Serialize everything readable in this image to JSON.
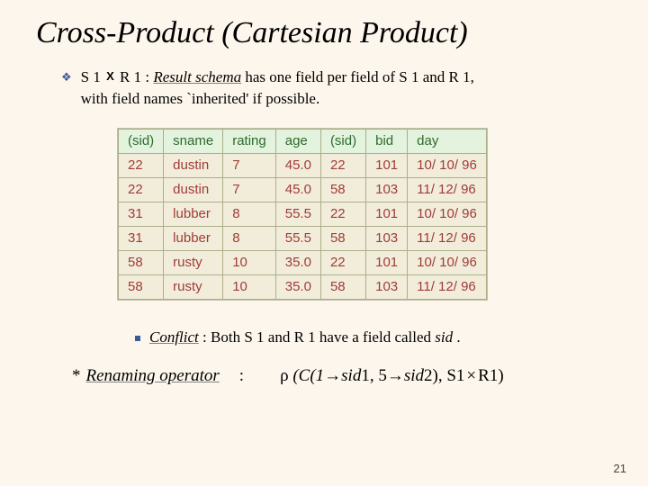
{
  "title": "Cross-Product (Cartesian Product)",
  "bullet": {
    "lhs": "S 1",
    "op": "X",
    "rhs": "R 1",
    "sep": " :  ",
    "schema": "Result schema",
    "rest1": " has one field per field of S 1 and R 1,",
    "rest2": "with field names `inherited' if possible."
  },
  "table": {
    "headers": [
      "(sid)",
      "sname",
      "rating",
      "age",
      "(sid)",
      "bid",
      "day"
    ],
    "rows": [
      [
        "22",
        "dustin",
        "7",
        "45.0",
        "22",
        "101",
        "10/ 10/ 96"
      ],
      [
        "22",
        "dustin",
        "7",
        "45.0",
        "58",
        "103",
        "11/ 12/ 96"
      ],
      [
        "31",
        "lubber",
        "8",
        "55.5",
        "22",
        "101",
        "10/ 10/ 96"
      ],
      [
        "31",
        "lubber",
        "8",
        "55.5",
        "58",
        "103",
        "11/ 12/ 96"
      ],
      [
        "58",
        "rusty",
        "10",
        "35.0",
        "22",
        "101",
        "10/ 10/ 96"
      ],
      [
        "58",
        "rusty",
        "10",
        "35.0",
        "58",
        "103",
        "11/ 12/ 96"
      ]
    ],
    "header_bg": "#e3f3de",
    "header_color": "#2d6b2d",
    "cell_color": "#a03b37",
    "border_color": "#aaae88",
    "font_family": "Arial"
  },
  "conflict": {
    "label": "Conflict",
    "text": ":  Both S 1 and R 1 have a field called ",
    "sid": "sid",
    "dot": "."
  },
  "rename": {
    "star": "*",
    "label": "Renaming operator",
    "colon": ":",
    "rho": "ρ",
    "open": " (C(1",
    "arrow1": "→",
    "sid1": "sid",
    "n1": "1, 5",
    "arrow2": "→",
    "sid2": "sid",
    "n2": "2), S1",
    "times": "×",
    "close": "R1)"
  },
  "page": "21",
  "colors": {
    "background": "#fdf6ec",
    "bullet_glyph": "#3c5a99"
  }
}
